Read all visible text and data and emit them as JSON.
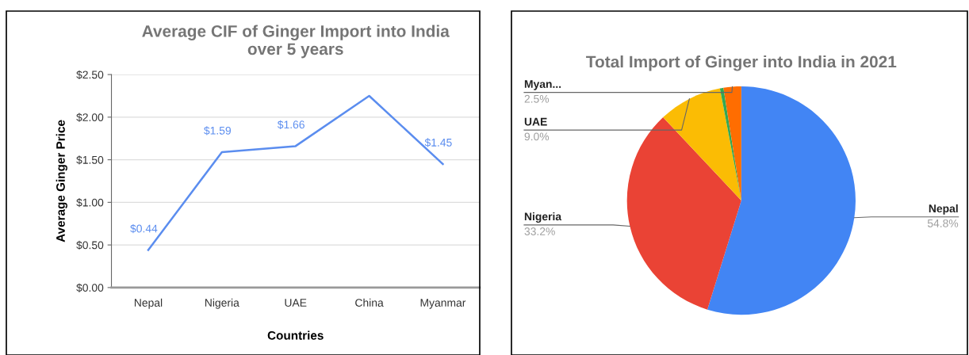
{
  "chart_data": [
    {
      "type": "line",
      "title": "Average CIF of Ginger Import into India\nover 5 years",
      "xlabel": "Countries",
      "ylabel": "Average Ginger Price",
      "categories": [
        "Nepal",
        "Nigeria",
        "UAE",
        "China",
        "Myanmar"
      ],
      "series": [
        {
          "color": "#5b8def",
          "values": [
            0.44,
            1.59,
            1.66,
            2.25,
            1.45
          ],
          "value_labels": [
            "$0.44",
            "$1.59",
            "$1.66",
            null,
            "$1.45"
          ]
        }
      ],
      "ylim": [
        0,
        2.5
      ],
      "yticks": [
        {
          "value": 0,
          "label": "$0.00"
        },
        {
          "value": 0.5,
          "label": "$0.50"
        },
        {
          "value": 1,
          "label": "$1.00"
        },
        {
          "value": 1.5,
          "label": "$1.50"
        },
        {
          "value": 2,
          "label": "$2.00"
        },
        {
          "value": 2.5,
          "label": "$2.50"
        }
      ],
      "grid": "y",
      "marker": "none",
      "line_style": "solid",
      "legend": false
    },
    {
      "type": "pie",
      "title": "Total Import of Ginger into India in 2021",
      "categories": [
        "Nepal",
        "Nigeria",
        "UAE",
        null,
        "Myan..."
      ],
      "values": [
        54.8,
        33.2,
        9.0,
        0.5,
        2.5
      ],
      "colors": [
        "#4285f4",
        "#ea4335",
        "#fbbc04",
        "#34a853",
        "#ff6d01"
      ],
      "value_labels": [
        "54.8%",
        "33.2%",
        "9.0%",
        null,
        "2.5%"
      ]
    }
  ]
}
